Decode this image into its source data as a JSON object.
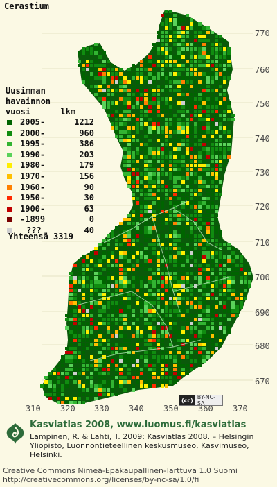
{
  "title": "Cerastium",
  "legend": {
    "heading": [
      "Uusimman",
      "havainnon",
      "vuosi      lkm"
    ],
    "rows": [
      {
        "year": "2005-",
        "count": "1212",
        "color": "#006400"
      },
      {
        "year": "2000-",
        "count": "960",
        "color": "#108c10"
      },
      {
        "year": "1995-",
        "count": "386",
        "color": "#32b432"
      },
      {
        "year": "1990-",
        "count": "203",
        "color": "#5ad25a"
      },
      {
        "year": "1980-",
        "count": "179",
        "color": "#ffee00"
      },
      {
        "year": "1970-",
        "count": "156",
        "color": "#ffc000"
      },
      {
        "year": "1960-",
        "count": "90",
        "color": "#ff8000"
      },
      {
        "year": "1950-",
        "count": "30",
        "color": "#ff2a00"
      },
      {
        "year": "1900-",
        "count": "63",
        "color": "#c00000"
      },
      {
        "year": "-1899",
        "count": "0",
        "color": "#7a0000"
      },
      {
        "year": "???",
        "count": "40",
        "color": "#cfcfcf"
      }
    ],
    "total": "Yhteensä 3319"
  },
  "grid_labels": {
    "north": [
      "770",
      "760",
      "750",
      "740",
      "730",
      "720",
      "710",
      "700",
      "690",
      "680",
      "670"
    ],
    "east": [
      "310",
      "320",
      "330",
      "340",
      "350",
      "360",
      "370"
    ]
  },
  "cc_badge": "BY-NC-SA",
  "footer": {
    "title": "Kasviatlas 2008, www.luomus.fi/kasviatlas",
    "citation": "Lampinen, R. & Lahti, T. 2009: Kasviatlas 2008. – Helsingin Yliopisto, Luonnontieteellinen keskusmuseo, Kasvimuseo, Helsinki.",
    "license_line1": "Creative Commons Nimeä-Epäkaupallinen-Tarttuva 1.0 Suomi",
    "license_line2": "http://creativecommons.org/licenses/by-nc-sa/1.0/fi"
  },
  "colors": {
    "background": "#fbf9e4",
    "land": "#0a5a0a",
    "border_lines": "#b9e6b9",
    "footer_green": "#2d6b3a"
  }
}
